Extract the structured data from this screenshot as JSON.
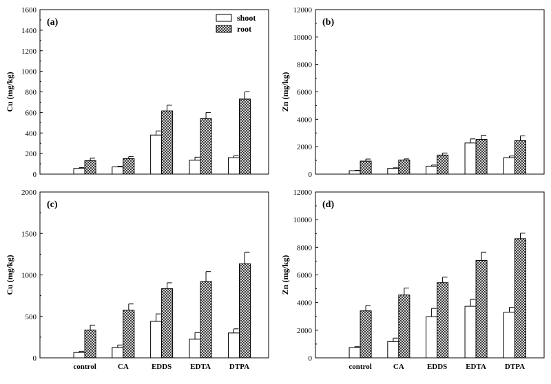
{
  "chart_data": [
    {
      "type": "bar",
      "panel_label": "(a)",
      "ylabel": "Cu (mg/kg)",
      "xlabel": "",
      "ylim": [
        0,
        1600
      ],
      "yticks": [
        0,
        200,
        400,
        600,
        800,
        1000,
        1200,
        1400,
        1600
      ],
      "categories": [
        "control",
        "CA",
        "EDDS",
        "EDTA",
        "DTPA"
      ],
      "show_x_tick_labels": false,
      "legend": "top-right",
      "series": [
        {
          "name": "shoot",
          "values": [
            55,
            70,
            380,
            135,
            160
          ],
          "errors": [
            8,
            6,
            40,
            30,
            20
          ]
        },
        {
          "name": "root",
          "values": [
            130,
            150,
            615,
            540,
            730
          ],
          "errors": [
            25,
            20,
            55,
            60,
            70
          ]
        }
      ]
    },
    {
      "type": "bar",
      "panel_label": "(b)",
      "ylabel": "Zn (mg/kg)",
      "xlabel": "",
      "ylim": [
        0,
        12000
      ],
      "yticks": [
        0,
        2000,
        4000,
        6000,
        8000,
        10000,
        12000
      ],
      "categories": [
        "control",
        "CA",
        "EDDS",
        "EDTA",
        "DTPA"
      ],
      "show_x_tick_labels": false,
      "series": [
        {
          "name": "shoot",
          "values": [
            250,
            420,
            580,
            2270,
            1200
          ],
          "errors": [
            30,
            40,
            80,
            300,
            120
          ]
        },
        {
          "name": "root",
          "values": [
            950,
            1030,
            1390,
            2540,
            2440
          ],
          "errors": [
            150,
            80,
            150,
            300,
            350
          ]
        }
      ]
    },
    {
      "type": "bar",
      "panel_label": "(c)",
      "ylabel": "Cu (mg/kg)",
      "xlabel": "",
      "ylim": [
        0,
        2000
      ],
      "yticks": [
        0,
        500,
        1000,
        1500,
        2000
      ],
      "categories": [
        "control",
        "CA",
        "EDDS",
        "EDTA",
        "DTPA"
      ],
      "show_x_tick_labels": true,
      "series": [
        {
          "name": "shoot",
          "values": [
            65,
            125,
            440,
            225,
            300
          ],
          "errors": [
            15,
            30,
            90,
            80,
            50
          ]
        },
        {
          "name": "root",
          "values": [
            335,
            575,
            835,
            920,
            1135
          ],
          "errors": [
            60,
            75,
            70,
            120,
            140
          ]
        }
      ]
    },
    {
      "type": "bar",
      "panel_label": "(d)",
      "ylabel": "Zn (mg/kg)",
      "xlabel": "",
      "ylim": [
        0,
        12000
      ],
      "yticks": [
        0,
        2000,
        4000,
        6000,
        8000,
        10000,
        12000
      ],
      "categories": [
        "control",
        "CA",
        "EDDS",
        "EDTA",
        "DTPA"
      ],
      "show_x_tick_labels": true,
      "series": [
        {
          "name": "shoot",
          "values": [
            750,
            1180,
            2980,
            3730,
            3300
          ],
          "errors": [
            60,
            250,
            600,
            500,
            350
          ]
        },
        {
          "name": "root",
          "values": [
            3400,
            4550,
            5440,
            7050,
            8620
          ],
          "errors": [
            380,
            500,
            400,
            600,
            400
          ]
        }
      ]
    }
  ]
}
